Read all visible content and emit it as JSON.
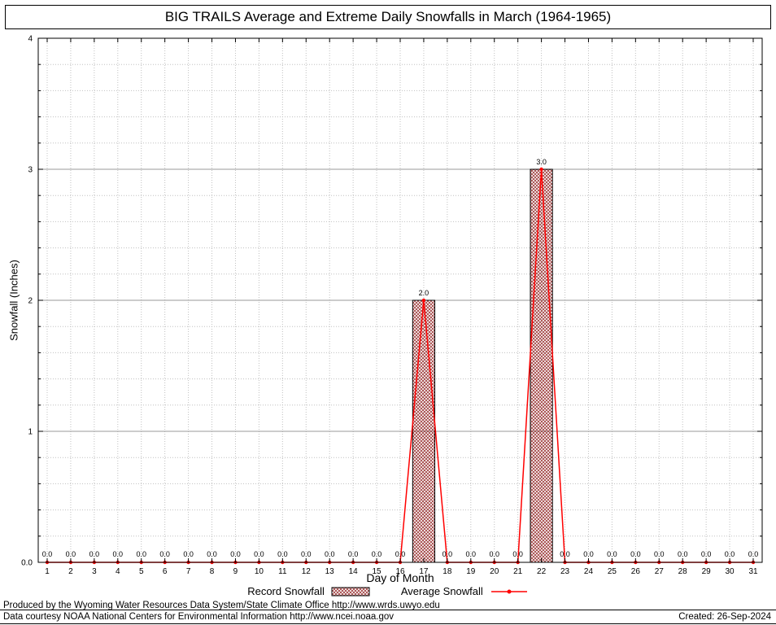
{
  "title": "BIG TRAILS Average and Extreme Daily Snowfalls in March (1964-1965)",
  "legend": {
    "record_label": "Record Snowfall",
    "average_label": "Average Snowfall"
  },
  "footer": {
    "line1": "Produced by the Wyoming Water Resources Data System/State Climate Office http://www.wrds.uwyo.edu",
    "line2": "Data courtesy NOAA National Centers for Environmental Information http://www.ncei.noaa.gov",
    "created": "Created: 26-Sep-2024"
  },
  "chart_data": {
    "type": "bar",
    "subtype": "combo bar+line",
    "title": "BIG TRAILS Average and Extreme Daily Snowfalls in March (1964-1965)",
    "xlabel": "Day of Month",
    "ylabel": "Snowfall (Inches)",
    "x": [
      1,
      2,
      3,
      4,
      5,
      6,
      7,
      8,
      9,
      10,
      11,
      12,
      13,
      14,
      15,
      16,
      17,
      18,
      19,
      20,
      21,
      22,
      23,
      24,
      25,
      26,
      27,
      28,
      29,
      30,
      31
    ],
    "series": [
      {
        "name": "Record Snowfall",
        "type": "bar",
        "values": [
          0.0,
          0.0,
          0.0,
          0.0,
          0.0,
          0.0,
          0.0,
          0.0,
          0.0,
          0.0,
          0.0,
          0.0,
          0.0,
          0.0,
          0.0,
          0.0,
          2.0,
          0.0,
          0.0,
          0.0,
          0.0,
          3.0,
          0.0,
          0.0,
          0.0,
          0.0,
          0.0,
          0.0,
          0.0,
          0.0,
          0.0
        ]
      },
      {
        "name": "Average Snowfall",
        "type": "line",
        "values": [
          0.0,
          0.0,
          0.0,
          0.0,
          0.0,
          0.0,
          0.0,
          0.0,
          0.0,
          0.0,
          0.0,
          0.0,
          0.0,
          0.0,
          0.0,
          0.0,
          2.0,
          0.0,
          0.0,
          0.0,
          0.0,
          3.0,
          0.0,
          0.0,
          0.0,
          0.0,
          0.0,
          0.0,
          0.0,
          0.0,
          0.0
        ]
      }
    ],
    "point_labels_format": "0.0",
    "ylim": [
      0,
      4
    ],
    "y_major_ticks": [
      0,
      1,
      2,
      3,
      4
    ],
    "y_tick_labels": [
      "0.0",
      "1",
      "2",
      "3",
      "4"
    ],
    "y_minor_step": 0.2,
    "grid": true,
    "legend_position": "bottom",
    "colors": {
      "line": "#ff0000",
      "bar_hatch": "#a04040",
      "bar_border": "#000000",
      "grid_major": "#9a9a9a",
      "grid_minor": "#c0c0c0",
      "frame": "#000000"
    }
  }
}
